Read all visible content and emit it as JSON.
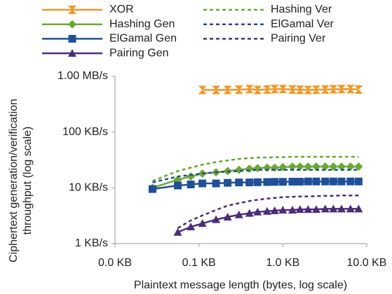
{
  "chart_data": {
    "type": "line",
    "xlabel": "Plaintext message length (bytes, log scale)",
    "ylabel": [
      "Ciphertext generation/verification",
      "throughput (log scale)"
    ],
    "xscale": "log",
    "yscale": "log",
    "xlim": [
      0.01,
      10
    ],
    "ylim": [
      1,
      1000
    ],
    "xticks": [
      {
        "value": 0.01,
        "label": "0.0 KB"
      },
      {
        "value": 0.1,
        "label": "0.1 KB"
      },
      {
        "value": 1,
        "label": "1.0 KB"
      },
      {
        "value": 10,
        "label": "10.0 KB"
      }
    ],
    "yticks": [
      {
        "value": 1,
        "label": "1 KB/s"
      },
      {
        "value": 10,
        "label": "10 KB/s"
      },
      {
        "value": 100,
        "label": "100 KB/s"
      },
      {
        "value": 1000,
        "label": "1.00 MB/s"
      }
    ],
    "x": [
      0.028,
      0.056,
      0.08,
      0.11,
      0.16,
      0.22,
      0.3,
      0.4,
      0.5,
      0.65,
      0.8,
      1,
      1.3,
      1.6,
      2,
      2.5,
      3.2,
      4,
      5,
      6.4,
      8
    ],
    "series": [
      {
        "name": "XOR",
        "color": "#f7941d",
        "marker": "hourglass",
        "dash": false,
        "values": [
          null,
          null,
          null,
          570,
          570,
          570,
          575,
          590,
          570,
          580,
          590,
          590,
          580,
          575,
          570,
          575,
          580,
          585,
          590,
          590,
          580
        ]
      },
      {
        "name": "Hashing Gen",
        "color": "#6aaa2a",
        "marker": "diamond",
        "dash": false,
        "values": [
          10,
          14,
          16,
          18,
          19,
          20,
          21,
          22,
          22.5,
          23,
          23,
          23.5,
          24,
          24,
          24,
          24,
          24,
          24,
          24,
          24,
          24
        ]
      },
      {
        "name": "ElGamal Gen",
        "color": "#1c4f9c",
        "marker": "square",
        "dash": false,
        "values": [
          9.5,
          11,
          11.5,
          12,
          12,
          12.3,
          12.5,
          12.5,
          12.6,
          12.7,
          12.8,
          12.8,
          12.9,
          12.9,
          13,
          13,
          13,
          13,
          13,
          13,
          13
        ]
      },
      {
        "name": "Pairing Gen",
        "color": "#4b2c7f",
        "marker": "triangle",
        "dash": false,
        "values": [
          null,
          1.6,
          2.0,
          2.3,
          2.7,
          3.0,
          3.3,
          3.5,
          3.7,
          3.8,
          3.9,
          4.0,
          4.0,
          4.1,
          4.1,
          4.1,
          4.2,
          4.2,
          4.2,
          4.2,
          4.2
        ]
      },
      {
        "name": "Hashing Ver",
        "color": "#6aaa2a",
        "marker": "none",
        "dash": true,
        "values": [
          13.3,
          20,
          23,
          26,
          29,
          31,
          33,
          34,
          35,
          35,
          35.5,
          35.5,
          36,
          36,
          36,
          36,
          36,
          36,
          36,
          36,
          36
        ]
      },
      {
        "name": "ElGamal Ver",
        "color": "#1c4f9c",
        "marker": "none",
        "dash": true,
        "values": [
          12.5,
          16,
          17,
          18,
          19,
          19.5,
          20,
          20.5,
          21,
          21,
          21,
          21,
          21,
          21,
          21,
          21,
          21,
          21,
          21,
          21,
          21
        ]
      },
      {
        "name": "Pairing Ver",
        "color": "#4b2c7f",
        "marker": "none",
        "dash": true,
        "values": [
          null,
          1.9,
          2.6,
          3.2,
          4,
          4.8,
          5.3,
          5.8,
          6.1,
          6.4,
          6.6,
          6.8,
          6.9,
          7,
          7,
          7.1,
          7.2,
          7.2,
          7.3,
          7.3,
          7.3
        ]
      }
    ]
  }
}
